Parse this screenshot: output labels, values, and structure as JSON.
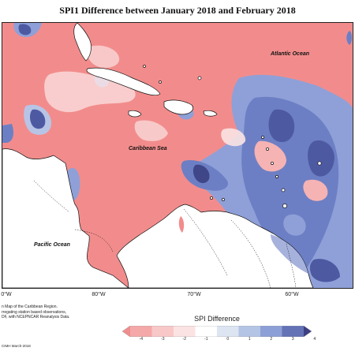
{
  "title": "SPI1 Difference between January 2018 and February 2018",
  "map_labels": {
    "atlantic": "Atlantic Ocean",
    "caribbean": "Caribbean Sea",
    "pacific": "Pacific Ocean"
  },
  "longitude_ticks": [
    "0°W",
    "80°W",
    "70°W",
    "60°W"
  ],
  "notes": [
    "n Map of the Caribbean Region.",
    "rregating station based observations,",
    "DF, with NCEPNCAR Reanalysis Data."
  ],
  "credit": "CIMH March-2018",
  "legend": {
    "title": "SPI Difference",
    "ticks": [
      "-4",
      "-3",
      "-2",
      "-1",
      "0",
      "1",
      "2",
      "3",
      "4"
    ],
    "colors": [
      "#f08d8d",
      "#f5a8a8",
      "#f8c8c8",
      "#fbe3e3",
      "#ffffff",
      "#dde5f3",
      "#b4c4e4",
      "#8c9fd6",
      "#6472b6",
      "#3c3f82"
    ]
  },
  "colors": {
    "deficit": "#f28c8c",
    "surplus": "#7d8fd0",
    "land": "#ffffff"
  }
}
